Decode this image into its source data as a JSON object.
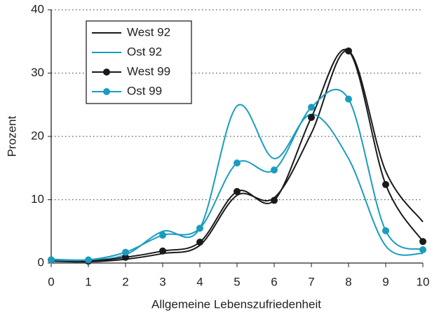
{
  "chart_data": {
    "type": "line",
    "x_label": "Allgemeine Lebenszufriedenheit",
    "y_label": "Prozent",
    "x": [
      0,
      1,
      2,
      3,
      4,
      5,
      6,
      7,
      8,
      9,
      10
    ],
    "xlim": [
      0,
      10
    ],
    "xticks": [
      0,
      1,
      2,
      3,
      4,
      5,
      6,
      7,
      8,
      9,
      10
    ],
    "ylim": [
      0,
      40
    ],
    "yticks": [
      0,
      10,
      20,
      30,
      40
    ],
    "grid": true,
    "legend": "upper left",
    "series": [
      {
        "name": "West 92",
        "color": "#1a1a1a",
        "marker": false,
        "values": [
          0.3,
          0.2,
          0.6,
          1.5,
          2.8,
          10.7,
          10.3,
          20.5,
          33.5,
          14.5,
          6.5
        ]
      },
      {
        "name": "Ost 92",
        "color": "#1a9cbf",
        "marker": false,
        "values": [
          0.6,
          0.5,
          1.3,
          5.0,
          5.5,
          24.8,
          16.5,
          23.5,
          16.5,
          2.7,
          1.5
        ]
      },
      {
        "name": "West 99",
        "color": "#1a1a1a",
        "marker": true,
        "values": [
          0.5,
          0.3,
          0.9,
          1.9,
          3.3,
          11.3,
          9.9,
          23.0,
          33.5,
          12.4,
          3.4
        ]
      },
      {
        "name": "Ost 99",
        "color": "#1a9cbf",
        "marker": true,
        "values": [
          0.5,
          0.5,
          1.7,
          4.4,
          5.5,
          15.8,
          14.7,
          24.6,
          25.9,
          5.1,
          2.1
        ]
      }
    ]
  }
}
